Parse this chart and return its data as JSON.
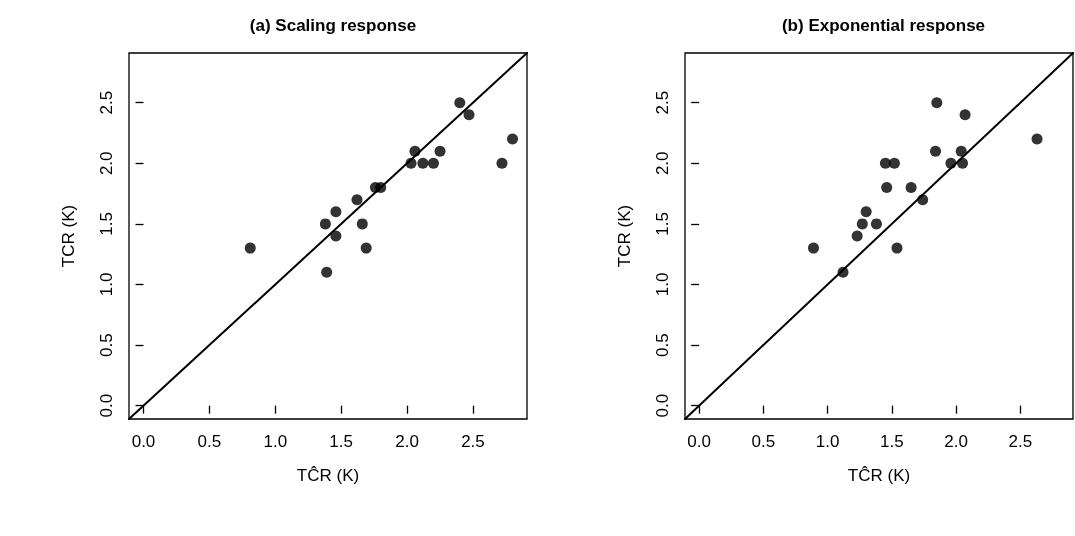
{
  "chart_data": [
    {
      "type": "scatter",
      "title": "(a) Scaling response",
      "xlabel": "TĈR (K)",
      "ylabel": "TCR (K)",
      "marker": "circle",
      "xlim": [
        -0.11,
        2.91
      ],
      "ylim": [
        -0.11,
        2.91
      ],
      "xticks": [
        {
          "value": 0,
          "label": "0.0"
        },
        {
          "value": 0.5,
          "label": "0.5"
        },
        {
          "value": 1,
          "label": "1.0"
        },
        {
          "value": 1.5,
          "label": "1.5"
        },
        {
          "value": 2,
          "label": "2.0"
        },
        {
          "value": 2.5,
          "label": "2.5"
        }
      ],
      "yticks": [
        {
          "value": 0,
          "label": "0.0"
        },
        {
          "value": 0.5,
          "label": "0.5"
        },
        {
          "value": 1,
          "label": "1.0"
        },
        {
          "value": 1.5,
          "label": "1.5"
        },
        {
          "value": 2,
          "label": "2.0"
        },
        {
          "value": 2.5,
          "label": "2.5"
        }
      ],
      "series": [
        {
          "color": "#000000",
          "x": [
            0.81,
            1.38,
            1.46,
            1.46,
            1.39,
            1.62,
            1.66,
            1.69,
            1.76,
            1.8,
            2.03,
            2.06,
            2.12,
            2.2,
            2.25,
            2.4,
            2.47,
            2.72,
            2.8
          ],
          "values": [
            1.3,
            1.5,
            1.6,
            1.4,
            1.1,
            1.7,
            1.5,
            1.3,
            1.8,
            1.8,
            2.0,
            2.1,
            2.0,
            2.0,
            2.1,
            2.5,
            2.4,
            2.0,
            2.2
          ]
        },
        {
          "type": "line",
          "color": "#000000",
          "marker": "none",
          "x": [
            -0.11,
            2.91
          ],
          "values": [
            -0.11,
            2.91
          ]
        }
      ]
    },
    {
      "type": "scatter",
      "title": "(b) Exponential response",
      "xlabel": "TĈR (K)",
      "ylabel": "TCR (K)",
      "marker": "circle",
      "xlim": [
        -0.11,
        2.91
      ],
      "ylim": [
        -0.11,
        2.91
      ],
      "xticks": [
        {
          "value": 0,
          "label": "0.0"
        },
        {
          "value": 0.5,
          "label": "0.5"
        },
        {
          "value": 1,
          "label": "1.0"
        },
        {
          "value": 1.5,
          "label": "1.5"
        },
        {
          "value": 2,
          "label": "2.0"
        },
        {
          "value": 2.5,
          "label": "2.5"
        }
      ],
      "yticks": [
        {
          "value": 0,
          "label": "0.0"
        },
        {
          "value": 0.5,
          "label": "0.5"
        },
        {
          "value": 1,
          "label": "1.0"
        },
        {
          "value": 1.5,
          "label": "1.5"
        },
        {
          "value": 2,
          "label": "2.0"
        },
        {
          "value": 2.5,
          "label": "2.5"
        }
      ],
      "series": [
        {
          "color": "#000000",
          "x": [
            0.89,
            1.12,
            1.23,
            1.27,
            1.3,
            1.38,
            1.46,
            1.45,
            1.52,
            1.54,
            1.65,
            1.74,
            1.84,
            1.85,
            1.96,
            2.04,
            2.05,
            2.07,
            2.63
          ],
          "values": [
            1.3,
            1.1,
            1.4,
            1.5,
            1.6,
            1.5,
            1.8,
            2.0,
            2.0,
            1.3,
            1.8,
            1.7,
            2.1,
            2.5,
            2.0,
            2.1,
            2.0,
            2.4,
            2.2
          ]
        },
        {
          "type": "line",
          "color": "#000000",
          "marker": "none",
          "x": [
            -0.11,
            2.91
          ],
          "values": [
            -0.11,
            2.91
          ]
        }
      ]
    }
  ]
}
